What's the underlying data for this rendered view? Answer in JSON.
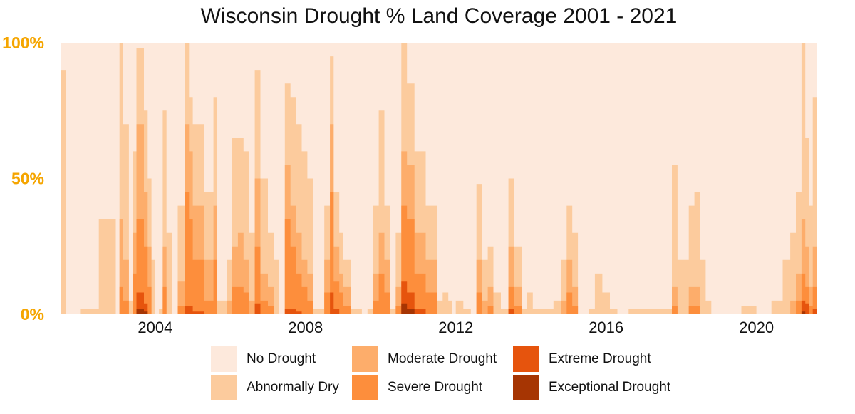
{
  "chart_data": {
    "type": "area",
    "title": "Wisconsin Drought % Land Coverage 2001 - 2021",
    "xlabel": "",
    "ylabel": "",
    "x_tick_labels": [
      "2004",
      "2008",
      "2012",
      "2016",
      "2020"
    ],
    "y_tick_labels": [
      "0%",
      "50%",
      "100%"
    ],
    "xlim": [
      2001.5,
      2021.6
    ],
    "ylim": [
      0,
      100
    ],
    "y_tick_color": "#f5a500",
    "legend_position": "bottom",
    "grid": false,
    "note_values": "cumulative % of land area at or above each category, sampled at selected dates",
    "x": [
      2001.5,
      2001.62,
      2001.7,
      2002.0,
      2002.5,
      2002.95,
      2003.05,
      2003.15,
      2003.3,
      2003.4,
      2003.5,
      2003.7,
      2003.8,
      2003.9,
      2004.0,
      2004.1,
      2004.2,
      2004.3,
      2004.45,
      2004.6,
      2004.8,
      2004.9,
      2005.0,
      2005.3,
      2005.55,
      2005.65,
      2005.75,
      2005.9,
      2006.05,
      2006.2,
      2006.35,
      2006.5,
      2006.65,
      2006.8,
      2007.0,
      2007.15,
      2007.3,
      2007.45,
      2007.6,
      2007.75,
      2007.9,
      2008.05,
      2008.2,
      2008.5,
      2008.65,
      2008.75,
      2008.9,
      2009.0,
      2009.2,
      2009.35,
      2009.5,
      2009.65,
      2009.8,
      2009.95,
      2010.1,
      2010.25,
      2010.4,
      2010.55,
      2010.7,
      2010.9,
      2011.2,
      2011.5,
      2011.65,
      2011.8,
      2011.9,
      2012.0,
      2012.2,
      2012.4,
      2012.55,
      2012.7,
      2012.85,
      2013.0,
      2013.2,
      2013.4,
      2013.55,
      2013.75,
      2013.9,
      2014.05,
      2014.2,
      2014.4,
      2014.6,
      2014.8,
      2014.95,
      2015.1,
      2015.25,
      2015.4,
      2015.55,
      2015.7,
      2015.9,
      2016.1,
      2016.3,
      2016.6,
      2017.0,
      2017.4,
      2017.6,
      2017.75,
      2017.9,
      2018.05,
      2018.2,
      2018.35,
      2018.5,
      2018.65,
      2018.8,
      2019.2,
      2019.6,
      2020.0,
      2020.4,
      2020.7,
      2020.9,
      2021.05,
      2021.2,
      2021.3,
      2021.4,
      2021.5,
      2021.6
    ],
    "series": [
      {
        "name": "No Drought",
        "color": "#fde9dc",
        "values": [
          100,
          100,
          100,
          100,
          100,
          100,
          100,
          100,
          100,
          100,
          100,
          100,
          100,
          100,
          100,
          100,
          100,
          100,
          100,
          100,
          100,
          100,
          100,
          100,
          100,
          100,
          100,
          100,
          100,
          100,
          100,
          100,
          100,
          100,
          100,
          100,
          100,
          100,
          100,
          100,
          100,
          100,
          100,
          100,
          100,
          100,
          100,
          100,
          100,
          100,
          100,
          100,
          100,
          100,
          100,
          100,
          100,
          100,
          100,
          100,
          100,
          100,
          100,
          100,
          100,
          100,
          100,
          100,
          100,
          100,
          100,
          100,
          100,
          100,
          100,
          100,
          100,
          100,
          100,
          100,
          100,
          100,
          100,
          100,
          100,
          100,
          100,
          100,
          100,
          100,
          100,
          100,
          100,
          100,
          100,
          100,
          100,
          100,
          100,
          100,
          100,
          100,
          100,
          100,
          100,
          100,
          100,
          100,
          100,
          100,
          100,
          100,
          100,
          100,
          100
        ]
      },
      {
        "name": "Abnormally Dry",
        "color": "#fccb9d",
        "values": [
          90,
          0,
          0,
          2,
          35,
          0,
          100,
          70,
          5,
          60,
          98,
          75,
          50,
          20,
          0,
          2,
          75,
          30,
          0,
          40,
          100,
          80,
          70,
          45,
          80,
          5,
          5,
          20,
          65,
          65,
          60,
          30,
          90,
          50,
          30,
          20,
          0,
          85,
          80,
          70,
          60,
          50,
          2,
          40,
          95,
          45,
          30,
          20,
          2,
          2,
          0,
          2,
          40,
          75,
          40,
          2,
          30,
          100,
          85,
          60,
          40,
          5,
          8,
          5,
          0,
          5,
          2,
          0,
          48,
          20,
          25,
          8,
          2,
          50,
          25,
          2,
          8,
          2,
          2,
          2,
          5,
          20,
          40,
          30,
          0,
          0,
          2,
          15,
          8,
          2,
          0,
          2,
          2,
          2,
          2,
          55,
          20,
          20,
          40,
          45,
          20,
          5,
          0,
          0,
          3,
          0,
          5,
          20,
          30,
          45,
          100,
          65,
          40,
          80,
          30
        ]
      },
      {
        "name": "Moderate Drought",
        "color": "#fdad6b",
        "values": [
          0,
          0,
          0,
          0,
          0,
          0,
          35,
          20,
          0,
          30,
          70,
          45,
          25,
          0,
          0,
          0,
          25,
          0,
          0,
          12,
          70,
          60,
          40,
          20,
          40,
          0,
          0,
          5,
          25,
          30,
          20,
          5,
          50,
          15,
          10,
          0,
          0,
          55,
          40,
          30,
          20,
          15,
          0,
          20,
          70,
          25,
          15,
          10,
          0,
          0,
          0,
          0,
          15,
          30,
          20,
          0,
          10,
          60,
          55,
          30,
          20,
          0,
          0,
          0,
          0,
          0,
          0,
          0,
          20,
          5,
          10,
          0,
          0,
          25,
          10,
          0,
          0,
          0,
          0,
          0,
          0,
          5,
          20,
          10,
          0,
          0,
          0,
          0,
          0,
          0,
          0,
          0,
          0,
          0,
          0,
          10,
          0,
          0,
          10,
          10,
          0,
          0,
          0,
          0,
          0,
          0,
          0,
          0,
          5,
          15,
          35,
          25,
          10,
          25,
          5
        ]
      },
      {
        "name": "Severe Drought",
        "color": "#fd8e3c",
        "values": [
          0,
          0,
          0,
          0,
          0,
          0,
          10,
          5,
          0,
          15,
          35,
          25,
          10,
          0,
          0,
          0,
          10,
          0,
          0,
          3,
          45,
          35,
          20,
          5,
          20,
          0,
          0,
          0,
          10,
          10,
          8,
          0,
          25,
          5,
          3,
          0,
          0,
          35,
          25,
          15,
          10,
          5,
          0,
          8,
          45,
          12,
          8,
          3,
          0,
          0,
          0,
          0,
          5,
          15,
          8,
          0,
          3,
          40,
          35,
          15,
          8,
          0,
          0,
          0,
          0,
          0,
          0,
          0,
          8,
          0,
          3,
          0,
          0,
          10,
          3,
          0,
          0,
          0,
          0,
          0,
          0,
          0,
          8,
          3,
          0,
          0,
          0,
          0,
          0,
          0,
          0,
          0,
          0,
          0,
          0,
          3,
          0,
          0,
          3,
          3,
          0,
          0,
          0,
          0,
          0,
          0,
          0,
          0,
          0,
          5,
          15,
          10,
          3,
          10,
          0
        ]
      },
      {
        "name": "Extreme Drought",
        "color": "#e6540d",
        "values": [
          0,
          0,
          0,
          0,
          0,
          0,
          0,
          0,
          0,
          0,
          8,
          4,
          0,
          0,
          0,
          0,
          0,
          0,
          0,
          0,
          3,
          3,
          1,
          0,
          0,
          0,
          0,
          0,
          0,
          0,
          0,
          0,
          4,
          0,
          0,
          0,
          0,
          2,
          2,
          1,
          0,
          0,
          0,
          0,
          8,
          2,
          0,
          0,
          0,
          0,
          0,
          0,
          0,
          0,
          0,
          0,
          0,
          12,
          8,
          2,
          0,
          0,
          0,
          0,
          0,
          0,
          0,
          0,
          0,
          0,
          0,
          0,
          0,
          2,
          0,
          0,
          0,
          0,
          0,
          0,
          0,
          0,
          0,
          0,
          0,
          0,
          0,
          0,
          0,
          0,
          0,
          0,
          0,
          0,
          0,
          0,
          0,
          0,
          0,
          0,
          0,
          0,
          0,
          0,
          0,
          0,
          0,
          0,
          0,
          0,
          5,
          4,
          0,
          2,
          0
        ]
      },
      {
        "name": "Exceptional Drought",
        "color": "#a63503",
        "values": [
          0,
          0,
          0,
          0,
          0,
          0,
          0,
          0,
          0,
          0,
          2,
          1,
          0,
          0,
          0,
          0,
          0,
          0,
          0,
          0,
          0,
          0,
          0,
          0,
          0,
          0,
          0,
          0,
          0,
          0,
          0,
          0,
          0,
          0,
          0,
          0,
          0,
          0,
          0,
          0,
          0,
          0,
          0,
          0,
          0,
          0,
          0,
          0,
          0,
          0,
          0,
          0,
          0,
          0,
          0,
          0,
          0,
          4,
          2,
          0,
          0,
          0,
          0,
          0,
          0,
          0,
          0,
          0,
          0,
          0,
          0,
          0,
          0,
          0,
          0,
          0,
          0,
          0,
          0,
          0,
          0,
          0,
          0,
          0,
          0,
          0,
          0,
          0,
          0,
          0,
          0,
          0,
          0,
          0,
          0,
          0,
          0,
          0,
          0,
          0,
          0,
          0,
          0,
          0,
          0,
          0,
          0,
          0,
          0,
          0,
          1,
          0,
          0,
          0,
          0
        ]
      }
    ]
  },
  "legend": {
    "items": [
      {
        "label": "No Drought",
        "color": "#fde9dc"
      },
      {
        "label": "Abnormally Dry",
        "color": "#fccb9d"
      },
      {
        "label": "Moderate Drought",
        "color": "#fdad6b"
      },
      {
        "label": "Severe Drought",
        "color": "#fd8e3c"
      },
      {
        "label": "Extreme Drought",
        "color": "#e6540d"
      },
      {
        "label": "Exceptional Drought",
        "color": "#a63503"
      }
    ]
  }
}
